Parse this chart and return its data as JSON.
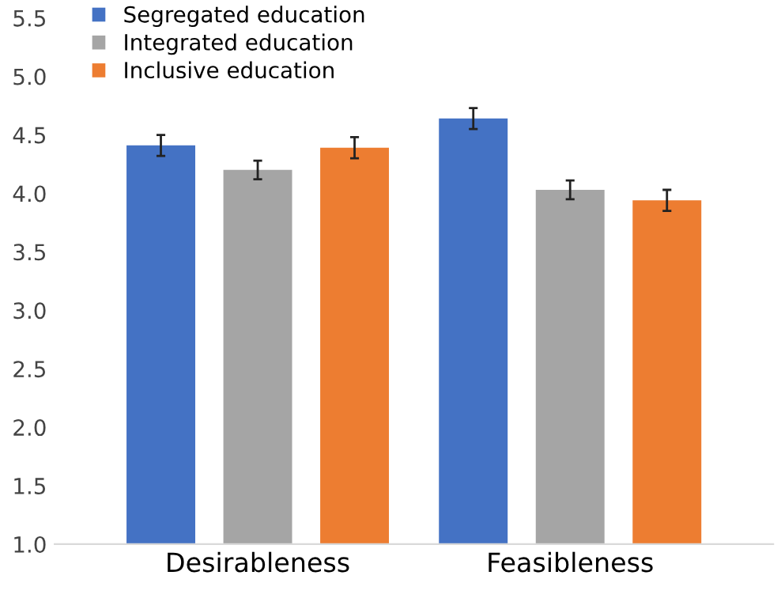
{
  "chart_data": {
    "type": "bar",
    "categories": [
      "Desirableness",
      "Feasibleness"
    ],
    "series": [
      {
        "name": "Segregated education",
        "color": "#4472c4",
        "values": [
          4.41,
          4.64
        ],
        "errors": [
          0.09,
          0.09
        ]
      },
      {
        "name": "Integrated education",
        "color": "#a5a5a5",
        "values": [
          4.2,
          4.03
        ],
        "errors": [
          0.08,
          0.08
        ]
      },
      {
        "name": "Inclusive education",
        "color": "#ed7d31",
        "values": [
          4.39,
          3.94
        ],
        "errors": [
          0.09,
          0.09
        ]
      }
    ],
    "ylim": [
      1.0,
      5.5
    ],
    "yticks": [
      {
        "value": 1.0,
        "label": "1.0"
      },
      {
        "value": 1.5,
        "label": "1.5"
      },
      {
        "value": 2.0,
        "label": "2.0"
      },
      {
        "value": 2.5,
        "label": "2.5"
      },
      {
        "value": 3.0,
        "label": "3.0"
      },
      {
        "value": 3.5,
        "label": "3.5"
      },
      {
        "value": 4.0,
        "label": "4.0"
      },
      {
        "value": 4.5,
        "label": "4.5"
      },
      {
        "value": 5.0,
        "label": "5.0"
      },
      {
        "value": 5.5,
        "label": "5.5"
      }
    ],
    "grid": false,
    "legend": "top left"
  }
}
